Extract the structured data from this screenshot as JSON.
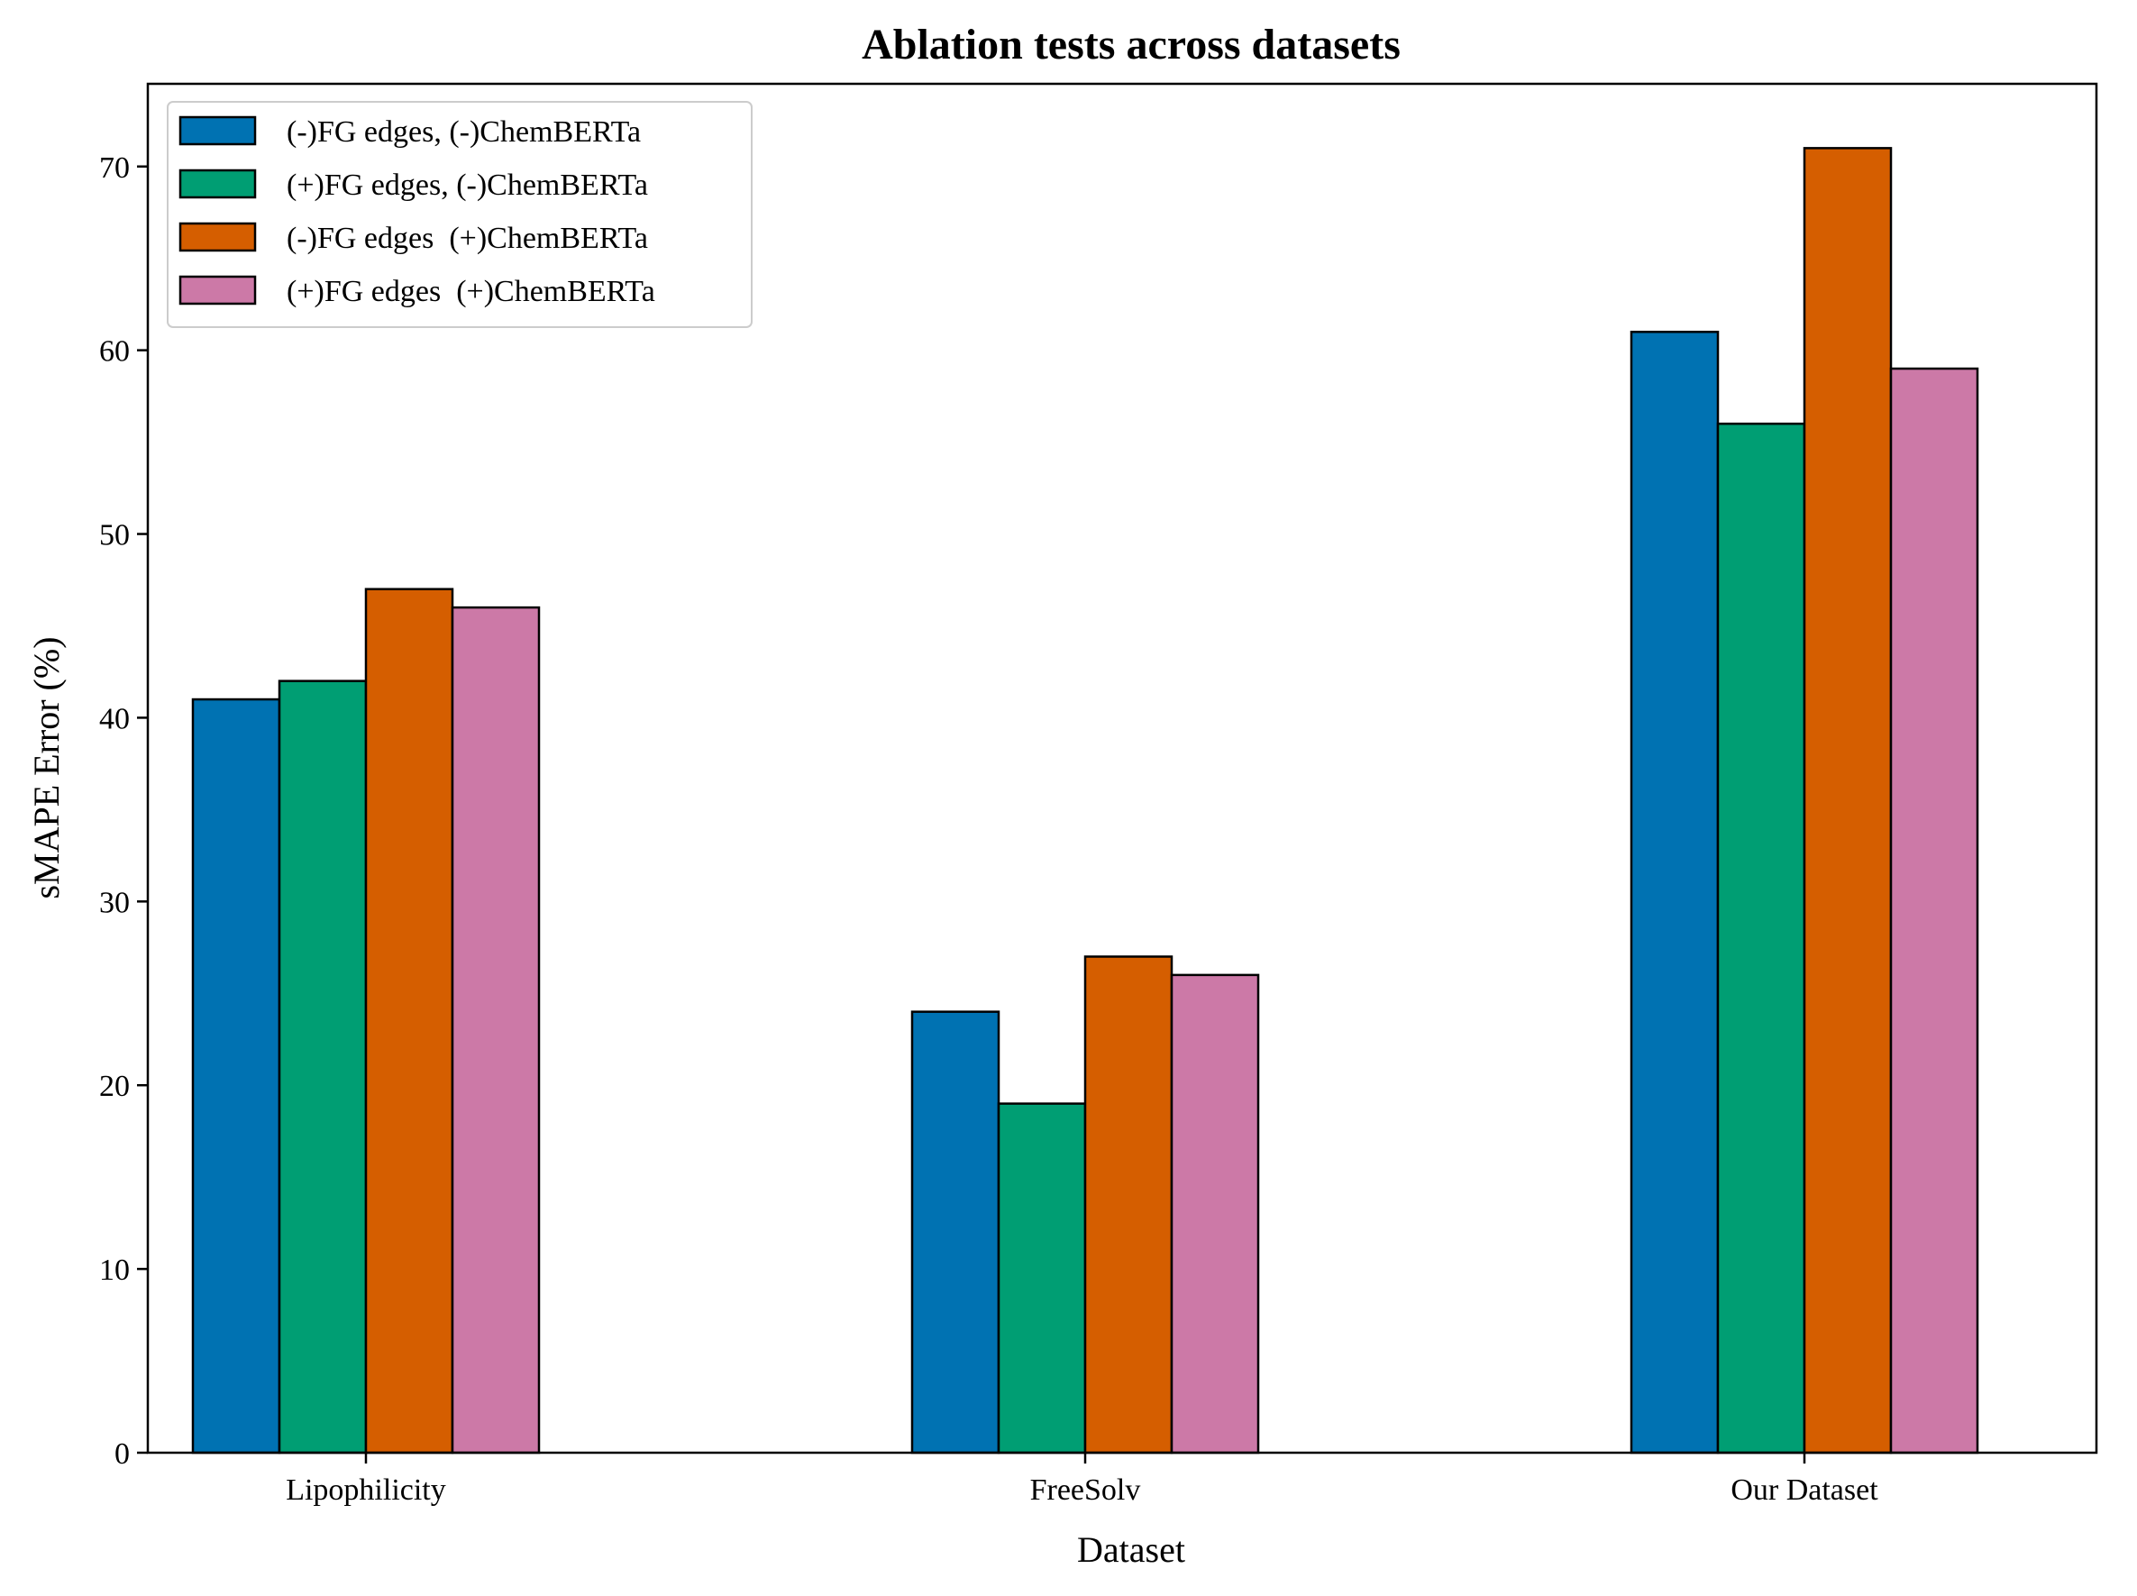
{
  "chart_data": {
    "type": "bar",
    "title": "Ablation tests across datasets",
    "xlabel": "Dataset",
    "ylabel": "sMAPE Error (%)",
    "categories": [
      "Lipophilicity",
      "FreeSolv",
      "Our Dataset"
    ],
    "ylim": [
      0,
      74.5
    ],
    "yticks": [
      0,
      10,
      20,
      30,
      40,
      50,
      60,
      70
    ],
    "grid": false,
    "legend_position": "top-left",
    "series": [
      {
        "name": "(-)FG edges, (-)ChemBERTa",
        "color": "#0072B2",
        "values": [
          41,
          24,
          61
        ]
      },
      {
        "name": "(+)FG edges, (-)ChemBERTa",
        "color": "#009E73",
        "values": [
          42,
          19,
          56
        ]
      },
      {
        "name": "(-)FG edges  (+)ChemBERTa",
        "color": "#D55E00",
        "values": [
          47,
          27,
          71
        ]
      },
      {
        "name": "(+)FG edges  (+)ChemBERTa",
        "color": "#CC79A7",
        "values": [
          46,
          26,
          59
        ]
      }
    ]
  }
}
